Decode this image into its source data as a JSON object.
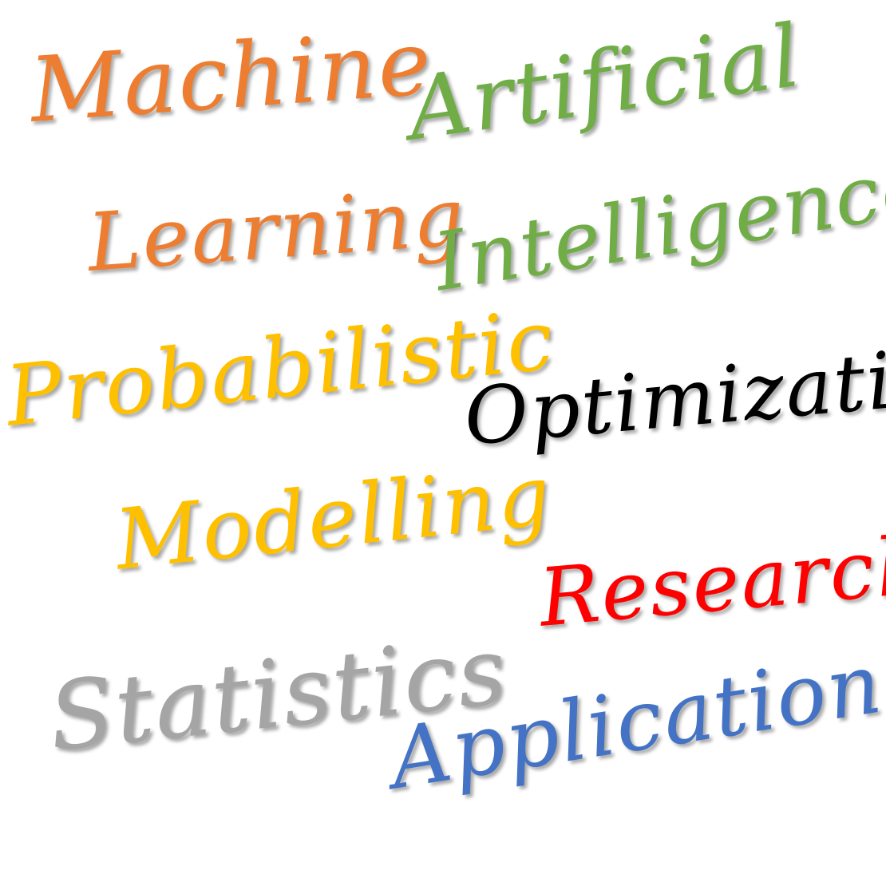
{
  "words": {
    "machine": {
      "text": "Machine",
      "color": "#ED7D31"
    },
    "learning": {
      "text": "Learning",
      "color": "#ED7D31"
    },
    "artificial": {
      "text": "Artificial",
      "color": "#70AD47"
    },
    "intelligence": {
      "text": "Intelligence",
      "color": "#70AD47"
    },
    "probabilistic": {
      "text": "Probabilistic",
      "color": "#FFC000"
    },
    "modelling": {
      "text": "Modelling",
      "color": "#FFC000"
    },
    "optimization": {
      "text": "Optimization",
      "color": "#000000"
    },
    "research": {
      "text": "Research",
      "color": "#FF0000"
    },
    "statistics": {
      "text": "Statistics",
      "color": "#A5A5A5"
    },
    "applications": {
      "text": "Applications",
      "color": "#4472C4"
    }
  }
}
